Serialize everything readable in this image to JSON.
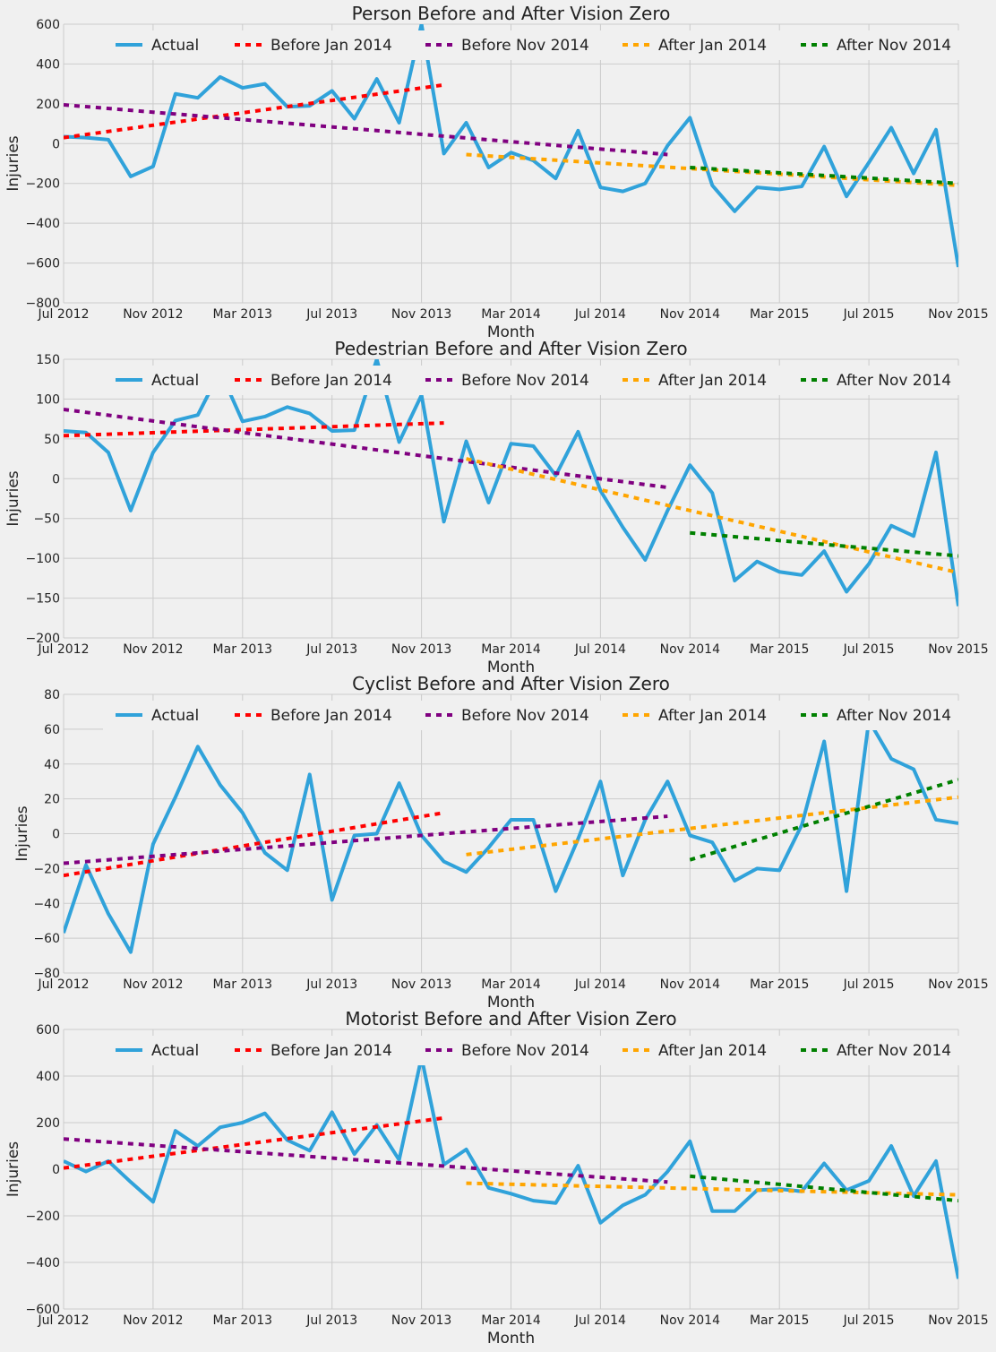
{
  "colors": {
    "background": "#f0f0f0",
    "grid": "#cbcbcb",
    "Actual": "#30a2da",
    "Before Jan 2014": "#ff0000",
    "Before Nov 2014": "#800080",
    "After Jan 2014": "#ffa500",
    "After Nov 2014": "#008000"
  },
  "chart_data": [
    {
      "type": "line",
      "title": "Person Before and After Vision Zero",
      "xlabel": "Month",
      "ylabel": "Injuries",
      "x_ticks": [
        "Jul 2012",
        "Nov 2012",
        "Mar 2013",
        "Jul 2013",
        "Nov 2013",
        "Mar 2014",
        "Jul 2014",
        "Nov 2014",
        "Mar 2015",
        "Jul 2015",
        "Nov 2015"
      ],
      "xlim": [
        0,
        40
      ],
      "ylim": [
        -800,
        600
      ],
      "y_ticks": [
        "−800",
        "−600",
        "−400",
        "−200",
        "0",
        "200",
        "400",
        "600"
      ],
      "y_tick_values": [
        -800,
        -600,
        -400,
        -200,
        0,
        200,
        400,
        600
      ],
      "grid": true,
      "legend_position": "top",
      "series": [
        {
          "name": "Actual",
          "style": "solid",
          "x_start": 0,
          "values": [
            35,
            30,
            20,
            -165,
            -115,
            250,
            230,
            335,
            280,
            300,
            185,
            190,
            265,
            125,
            325,
            105,
            600,
            -50,
            105,
            -120,
            -45,
            -85,
            -175,
            65,
            -220,
            -240,
            -200,
            -10,
            130,
            -210,
            -340,
            -220,
            -230,
            -215,
            -15,
            -265,
            -95,
            80,
            -150,
            70,
            -620
          ]
        },
        {
          "name": "Before Jan 2014",
          "style": "dashed",
          "x_start": 0,
          "x_end": 17,
          "y_start": 30,
          "y_end": 295
        },
        {
          "name": "Before Nov 2014",
          "style": "dashed",
          "x_start": 0,
          "x_end": 27,
          "y_start": 195,
          "y_end": -55
        },
        {
          "name": "After Jan 2014",
          "style": "dashed",
          "x_start": 18,
          "x_end": 40,
          "y_start": -55,
          "y_end": -210
        },
        {
          "name": "After Nov 2014",
          "style": "dashed",
          "x_start": 28,
          "x_end": 40,
          "y_start": -120,
          "y_end": -200
        }
      ]
    },
    {
      "type": "line",
      "title": "Pedestrian Before and After Vision Zero",
      "xlabel": "Month",
      "ylabel": "Injuries",
      "x_ticks": [
        "Jul 2012",
        "Nov 2012",
        "Mar 2013",
        "Jul 2013",
        "Nov 2013",
        "Mar 2014",
        "Jul 2014",
        "Nov 2014",
        "Mar 2015",
        "Jul 2015",
        "Nov 2015"
      ],
      "xlim": [
        0,
        40
      ],
      "ylim": [
        -200,
        150
      ],
      "y_ticks": [
        "−200",
        "−150",
        "−100",
        "−50",
        "0",
        "50",
        "100",
        "150"
      ],
      "y_tick_values": [
        -200,
        -150,
        -100,
        -50,
        0,
        50,
        100,
        150
      ],
      "grid": true,
      "legend_position": "top",
      "series": [
        {
          "name": "Actual",
          "style": "solid",
          "x_start": 0,
          "values": [
            60,
            58,
            33,
            -40,
            33,
            73,
            80,
            135,
            72,
            78,
            90,
            82,
            60,
            61,
            150,
            46,
            105,
            -54,
            47,
            -30,
            44,
            41,
            4,
            59,
            -15,
            -61,
            -102,
            -40,
            17,
            -18,
            -128,
            -104,
            -117,
            -121,
            -91,
            -142,
            -107,
            -59,
            -72,
            33,
            -160
          ]
        },
        {
          "name": "Before Jan 2014",
          "style": "dashed",
          "x_start": 0,
          "x_end": 17,
          "y_start": 54,
          "y_end": 70
        },
        {
          "name": "Before Nov 2014",
          "style": "dashed",
          "x_start": 0,
          "x_end": 27,
          "y_start": 87,
          "y_end": -11
        },
        {
          "name": "After Jan 2014",
          "style": "dashed",
          "x_start": 18,
          "x_end": 40,
          "y_start": 25,
          "y_end": -118
        },
        {
          "name": "After Nov 2014",
          "style": "dashed",
          "x_start": 28,
          "x_end": 40,
          "y_start": -68,
          "y_end": -97
        }
      ]
    },
    {
      "type": "line",
      "title": "Cyclist Before and After Vision Zero",
      "xlabel": "Month",
      "ylabel": "Injuries",
      "x_ticks": [
        "Jul 2012",
        "Nov 2012",
        "Mar 2013",
        "Jul 2013",
        "Nov 2013",
        "Mar 2014",
        "Jul 2014",
        "Nov 2014",
        "Mar 2015",
        "Jul 2015",
        "Nov 2015"
      ],
      "xlim": [
        0,
        40
      ],
      "ylim": [
        -80,
        80
      ],
      "y_ticks": [
        "−80",
        "−60",
        "−40",
        "−20",
        "0",
        "20",
        "40",
        "60",
        "80"
      ],
      "y_tick_values": [
        -80,
        -60,
        -40,
        -20,
        0,
        20,
        40,
        60,
        80
      ],
      "grid": true,
      "legend_position": "top",
      "series": [
        {
          "name": "Actual",
          "style": "solid",
          "x_start": 0,
          "values": [
            -57,
            -18,
            -46,
            -68,
            -6,
            21,
            50,
            28,
            12,
            -11,
            -21,
            34,
            -38,
            -1,
            0,
            29,
            -1,
            -16,
            -22,
            -8,
            8,
            8,
            -33,
            -3,
            30,
            -24,
            8,
            30,
            -1,
            -5,
            -27,
            -20,
            -21,
            5,
            53,
            -33,
            65,
            43,
            37,
            8,
            6
          ]
        },
        {
          "name": "Before Jan 2014",
          "style": "dashed",
          "x_start": 0,
          "x_end": 17,
          "y_start": -24,
          "y_end": 12
        },
        {
          "name": "Before Nov 2014",
          "style": "dashed",
          "x_start": 0,
          "x_end": 27,
          "y_start": -17,
          "y_end": 10
        },
        {
          "name": "After Jan 2014",
          "style": "dashed",
          "x_start": 18,
          "x_end": 40,
          "y_start": -12,
          "y_end": 21
        },
        {
          "name": "After Nov 2014",
          "style": "dashed",
          "x_start": 28,
          "x_end": 40,
          "y_start": -15,
          "y_end": 31
        }
      ]
    },
    {
      "type": "line",
      "title": "Motorist Before and After Vision Zero",
      "xlabel": "Month",
      "ylabel": "Injuries",
      "x_ticks": [
        "Jul 2012",
        "Nov 2012",
        "Mar 2013",
        "Jul 2013",
        "Nov 2013",
        "Mar 2014",
        "Jul 2014",
        "Nov 2014",
        "Mar 2015",
        "Jul 2015",
        "Nov 2015"
      ],
      "xlim": [
        0,
        40
      ],
      "ylim": [
        -600,
        600
      ],
      "y_ticks": [
        "−600",
        "−400",
        "−200",
        "0",
        "200",
        "400",
        "600"
      ],
      "y_tick_values": [
        -600,
        -400,
        -200,
        0,
        200,
        400,
        600
      ],
      "grid": true,
      "legend_position": "top",
      "series": [
        {
          "name": "Actual",
          "style": "solid",
          "x_start": 0,
          "values": [
            35,
            -10,
            35,
            -55,
            -140,
            165,
            100,
            180,
            200,
            240,
            125,
            80,
            245,
            65,
            190,
            40,
            480,
            20,
            85,
            -80,
            -105,
            -135,
            -145,
            15,
            -230,
            -155,
            -110,
            -10,
            120,
            -180,
            -180,
            -90,
            -85,
            -95,
            25,
            -90,
            -50,
            100,
            -115,
            35,
            -470
          ]
        },
        {
          "name": "Before Jan 2014",
          "style": "dashed",
          "x_start": 0,
          "x_end": 17,
          "y_start": 5,
          "y_end": 220
        },
        {
          "name": "Before Nov 2014",
          "style": "dashed",
          "x_start": 0,
          "x_end": 27,
          "y_start": 130,
          "y_end": -55
        },
        {
          "name": "After Jan 2014",
          "style": "dashed",
          "x_start": 18,
          "x_end": 40,
          "y_start": -60,
          "y_end": -110
        },
        {
          "name": "After Nov 2014",
          "style": "dashed",
          "x_start": 28,
          "x_end": 40,
          "y_start": -30,
          "y_end": -135
        }
      ]
    }
  ]
}
